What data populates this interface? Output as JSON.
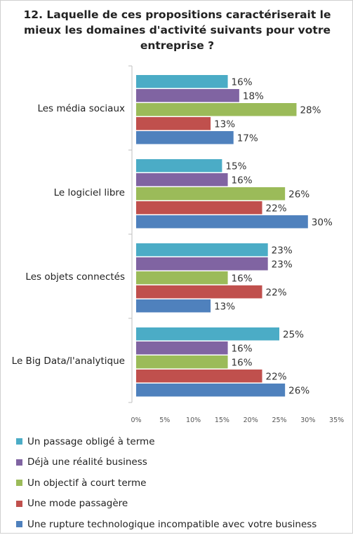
{
  "chart_data": {
    "type": "bar",
    "orientation": "horizontal",
    "title": "12. Laquelle de ces propositions caractériserait le mieux les domaines d'activité suivants pour votre entreprise ?",
    "categories": [
      "Les média sociaux",
      "Le logiciel libre",
      "Les objets connectés",
      "Le Big Data/l'analytique"
    ],
    "series": [
      {
        "name": "Un passage obligé à terme",
        "color": "#4bacc6",
        "values": [
          16,
          15,
          23,
          25
        ]
      },
      {
        "name": "Déjà une réalité business",
        "color": "#8064a2",
        "values": [
          18,
          16,
          23,
          16
        ]
      },
      {
        "name": "Un objectif à court terme",
        "color": "#9bbb59",
        "values": [
          28,
          26,
          16,
          16
        ]
      },
      {
        "name": "Une mode passagère",
        "color": "#c0504d",
        "values": [
          13,
          22,
          22,
          22
        ]
      },
      {
        "name": "Une rupture technologique incompatible avec votre business",
        "color": "#4f81bd",
        "values": [
          17,
          30,
          13,
          26
        ]
      }
    ],
    "value_suffix": "%",
    "xlim": [
      0,
      35
    ],
    "x_ticks": [
      "0%",
      "5%",
      "10%",
      "15%",
      "20%",
      "25%",
      "30%",
      "35%"
    ],
    "grid": false,
    "legend_position": "bottom"
  }
}
